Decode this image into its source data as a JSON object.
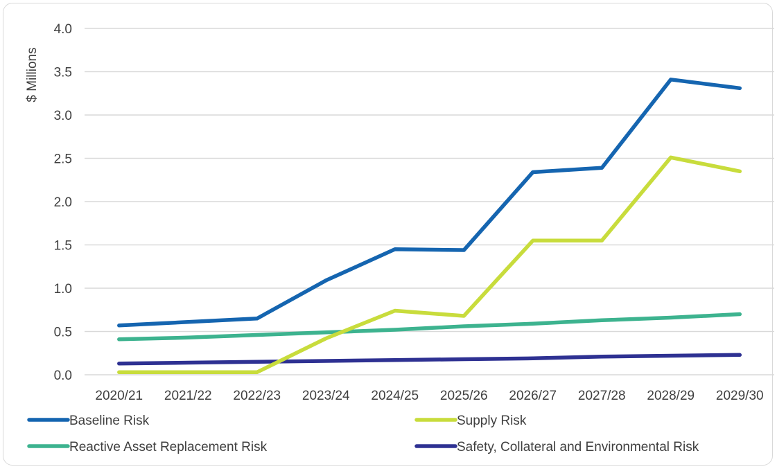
{
  "chart_data": {
    "type": "line",
    "title": "",
    "xlabel": "",
    "ylabel": "$ Millions",
    "ylim": [
      0,
      4.0
    ],
    "yticks": [
      "0.0",
      "0.5",
      "1.0",
      "1.5",
      "2.0",
      "2.5",
      "3.0",
      "3.5",
      "4.0"
    ],
    "grid": true,
    "legend_position": "bottom",
    "categories": [
      "2020/21",
      "2021/22",
      "2022/23",
      "2023/24",
      "2024/25",
      "2025/26",
      "2026/27",
      "2027/28",
      "2028/29",
      "2029/30"
    ],
    "series": [
      {
        "name": "Baseline Risk",
        "color": "#1565b0",
        "values": [
          0.57,
          0.61,
          0.65,
          1.09,
          1.45,
          1.44,
          2.34,
          2.39,
          3.41,
          3.31
        ]
      },
      {
        "name": "Supply Risk",
        "color": "#c8dc3c",
        "values": [
          0.03,
          0.03,
          0.03,
          0.42,
          0.74,
          0.68,
          1.55,
          1.55,
          2.51,
          2.35
        ]
      },
      {
        "name": "Reactive Asset Replacement Risk",
        "color": "#3db38f",
        "values": [
          0.41,
          0.43,
          0.46,
          0.49,
          0.52,
          0.56,
          0.59,
          0.63,
          0.66,
          0.7
        ]
      },
      {
        "name": "Safety, Collateral and Environmental Risk",
        "color": "#2e3192",
        "values": [
          0.13,
          0.14,
          0.15,
          0.16,
          0.17,
          0.18,
          0.19,
          0.21,
          0.22,
          0.23
        ]
      }
    ]
  }
}
